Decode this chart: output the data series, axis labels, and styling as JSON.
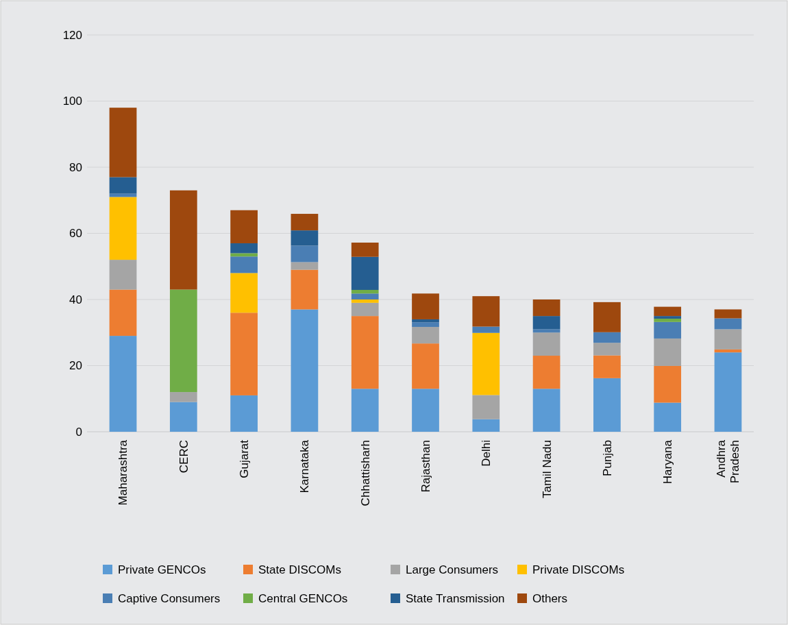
{
  "chart_data": {
    "type": "bar",
    "stacked": true,
    "categories": [
      "Maharashtra",
      "CERC",
      "Gujarat",
      "Karnataka",
      "Chhattisharh",
      "Rajasthan",
      "Delhi",
      "Tamil Nadu",
      "Punjab",
      "Haryana",
      "Andhra Pradesh"
    ],
    "series": [
      {
        "name": "Private GENCOs",
        "color": "#5b9bd5",
        "values": [
          29,
          9,
          11,
          37,
          13,
          13,
          3.8,
          13,
          16.2,
          8.8,
          24
        ]
      },
      {
        "name": "State DISCOMs",
        "color": "#ed7d31",
        "values": [
          14,
          0,
          25,
          12,
          22,
          13.7,
          0,
          10,
          6.9,
          11.1,
          0.9
        ]
      },
      {
        "name": "Large Consumers",
        "color": "#a5a5a5",
        "values": [
          9,
          3,
          0,
          2.3,
          4,
          5,
          7.3,
          7,
          3.8,
          8.3,
          6.1
        ]
      },
      {
        "name": "Private DISCOMs",
        "color": "#ffc000",
        "values": [
          19,
          0,
          12,
          0,
          1,
          0,
          18.8,
          0,
          0,
          0,
          0
        ]
      },
      {
        "name": "Captive Consumers",
        "color": "#4a7eb4",
        "values": [
          1,
          0,
          5,
          5,
          1.8,
          1.4,
          1.9,
          1,
          3.2,
          5,
          3.3
        ]
      },
      {
        "name": "Central GENCOs",
        "color": "#70ad47",
        "values": [
          0,
          31,
          1,
          0,
          1.1,
          0,
          0,
          0,
          0,
          1,
          0
        ]
      },
      {
        "name": "State Transmission",
        "color": "#255e91",
        "values": [
          5,
          0,
          3,
          4.6,
          10,
          0.9,
          0,
          4,
          0,
          0.8,
          0
        ]
      },
      {
        "name": "Others",
        "color": "#9e480e",
        "values": [
          21,
          30,
          10,
          5,
          4.3,
          7.8,
          9.2,
          5,
          9.1,
          2.8,
          2.7
        ]
      }
    ],
    "ylim": [
      0,
      120
    ],
    "yticks": [
      0,
      20,
      40,
      60,
      80,
      100,
      120
    ],
    "grid": "y",
    "legend": "bottom"
  }
}
